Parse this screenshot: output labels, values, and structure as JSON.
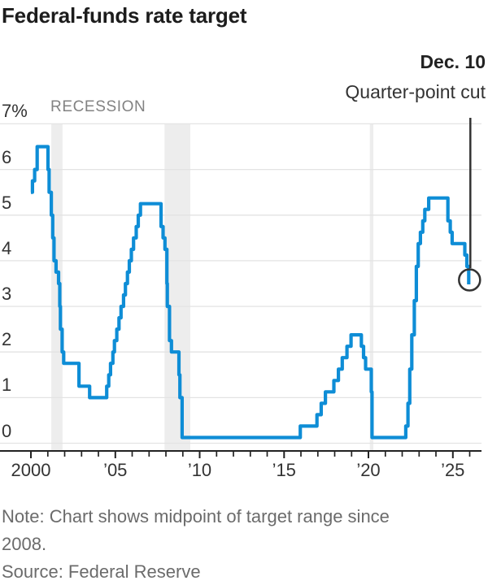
{
  "title": "Federal-funds rate target",
  "recession_label": "RECESSION",
  "annotation": {
    "date_label": "Dec. 10",
    "event_label": "Quarter-point cut"
  },
  "note_lines": [
    "Note: Chart shows midpoint of target range since",
    "2008."
  ],
  "source": "Source: Federal Reserve",
  "colors": {
    "line": "#0e8dd6",
    "recession_band": "#ededed",
    "gridline": "#e3e3e3",
    "axis": "#222222",
    "annotation": "#333333",
    "title_text": "#1c1c1c",
    "tick_text": "#333333",
    "muted_text": "#828282",
    "note_text": "#6b6b6b"
  },
  "chart_data": {
    "type": "line",
    "step": true,
    "title": "Federal-funds rate target",
    "xlabel": "",
    "ylabel": "%",
    "ylim": [
      0,
      7
    ],
    "xlim": [
      2000,
      2026.5
    ],
    "grid": "horizontal",
    "legend": "none",
    "y_ticks": [
      {
        "value": 7,
        "label": "7%"
      },
      {
        "value": 6,
        "label": "6"
      },
      {
        "value": 5,
        "label": "5"
      },
      {
        "value": 4,
        "label": "4"
      },
      {
        "value": 3,
        "label": "3"
      },
      {
        "value": 2,
        "label": "2"
      },
      {
        "value": 1,
        "label": "1"
      },
      {
        "value": 0,
        "label": "0"
      }
    ],
    "x_ticks": [
      {
        "year": 2000,
        "label": "2000"
      },
      {
        "year": 2005,
        "label": "’05"
      },
      {
        "year": 2010,
        "label": "’10"
      },
      {
        "year": 2015,
        "label": "’15"
      },
      {
        "year": 2020,
        "label": "’20"
      },
      {
        "year": 2025,
        "label": "’25"
      }
    ],
    "x_minor_tick_interval": 1,
    "x_minor_tick_range": [
      2000,
      2026
    ],
    "recessions": [
      {
        "start": 2001.21,
        "end": 2001.87
      },
      {
        "start": 2007.92,
        "end": 2009.45
      },
      {
        "start": 2020.08,
        "end": 2020.29
      }
    ],
    "series": [
      {
        "name": "Federal-funds rate target (midpoint of range since 2008), %",
        "points": [
          [
            2000.0,
            5.5
          ],
          [
            2000.09,
            5.75
          ],
          [
            2000.22,
            6.0
          ],
          [
            2000.37,
            6.5
          ],
          [
            2001.01,
            6.0
          ],
          [
            2001.08,
            5.5
          ],
          [
            2001.21,
            5.0
          ],
          [
            2001.29,
            4.5
          ],
          [
            2001.37,
            4.0
          ],
          [
            2001.49,
            3.75
          ],
          [
            2001.64,
            3.5
          ],
          [
            2001.71,
            3.0
          ],
          [
            2001.75,
            2.5
          ],
          [
            2001.85,
            2.0
          ],
          [
            2001.94,
            1.75
          ],
          [
            2002.85,
            1.25
          ],
          [
            2003.48,
            1.0
          ],
          [
            2004.49,
            1.25
          ],
          [
            2004.61,
            1.5
          ],
          [
            2004.72,
            1.75
          ],
          [
            2004.86,
            2.0
          ],
          [
            2004.95,
            2.25
          ],
          [
            2005.09,
            2.5
          ],
          [
            2005.22,
            2.75
          ],
          [
            2005.34,
            3.0
          ],
          [
            2005.49,
            3.25
          ],
          [
            2005.6,
            3.5
          ],
          [
            2005.72,
            3.75
          ],
          [
            2005.83,
            4.0
          ],
          [
            2005.95,
            4.25
          ],
          [
            2006.08,
            4.5
          ],
          [
            2006.24,
            4.75
          ],
          [
            2006.36,
            5.0
          ],
          [
            2006.49,
            5.25
          ],
          [
            2007.71,
            4.75
          ],
          [
            2007.83,
            4.5
          ],
          [
            2007.94,
            4.25
          ],
          [
            2008.06,
            3.5
          ],
          [
            2008.08,
            3.0
          ],
          [
            2008.21,
            2.25
          ],
          [
            2008.33,
            2.0
          ],
          [
            2008.77,
            1.5
          ],
          [
            2008.83,
            1.0
          ],
          [
            2008.96,
            0.125
          ],
          [
            2015.96,
            0.375
          ],
          [
            2016.95,
            0.625
          ],
          [
            2017.2,
            0.875
          ],
          [
            2017.45,
            1.125
          ],
          [
            2017.95,
            1.375
          ],
          [
            2018.22,
            1.625
          ],
          [
            2018.45,
            1.875
          ],
          [
            2018.73,
            2.125
          ],
          [
            2018.97,
            2.375
          ],
          [
            2019.58,
            2.125
          ],
          [
            2019.71,
            1.875
          ],
          [
            2019.83,
            1.625
          ],
          [
            2020.17,
            1.125
          ],
          [
            2020.21,
            0.125
          ],
          [
            2022.21,
            0.375
          ],
          [
            2022.34,
            0.875
          ],
          [
            2022.45,
            1.625
          ],
          [
            2022.57,
            2.375
          ],
          [
            2022.72,
            3.125
          ],
          [
            2022.84,
            3.875
          ],
          [
            2022.95,
            4.375
          ],
          [
            2023.08,
            4.625
          ],
          [
            2023.22,
            4.875
          ],
          [
            2023.34,
            5.125
          ],
          [
            2023.57,
            5.375
          ],
          [
            2024.71,
            4.875
          ],
          [
            2024.85,
            4.625
          ],
          [
            2024.96,
            4.375
          ],
          [
            2025.71,
            4.125
          ],
          [
            2025.83,
            3.875
          ],
          [
            2025.94,
            3.625
          ]
        ]
      }
    ],
    "end_point": {
      "x": 2025.94,
      "y": 3.625,
      "marker": "open-circle",
      "annotation": "Dec. 10 — Quarter-point cut"
    }
  }
}
